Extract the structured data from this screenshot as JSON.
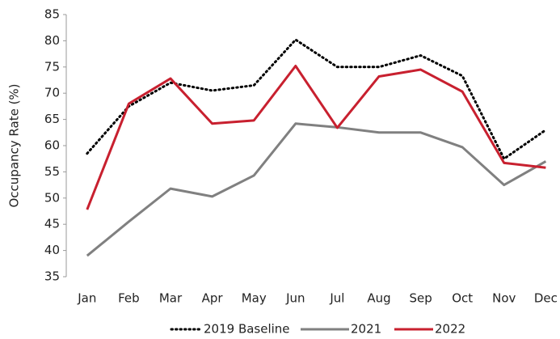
{
  "chart_data": {
    "type": "line",
    "y_label": "Occupancy Rate (%)",
    "categories": [
      "Jan",
      "Feb",
      "Mar",
      "Apr",
      "May",
      "Jun",
      "Jul",
      "Aug",
      "Sep",
      "Oct",
      "Nov",
      "Dec"
    ],
    "series": [
      {
        "name": "2019 Baseline",
        "color": "#000000",
        "dash": "dotted",
        "values": [
          58.5,
          67.5,
          72,
          70.5,
          71.5,
          80.2,
          75,
          75,
          77.2,
          73.3,
          57.5,
          63
        ]
      },
      {
        "name": "2021",
        "color": "#808080",
        "values": [
          39,
          45.5,
          51.8,
          50.3,
          54.3,
          64.2,
          63.5,
          62.5,
          62.5,
          59.7,
          52.5,
          57
        ]
      },
      {
        "name": "2022",
        "color": "#c8202f",
        "values": [
          47.8,
          68,
          72.8,
          64.2,
          64.8,
          75.2,
          63.4,
          73.2,
          74.5,
          70.3,
          56.7,
          55.8
        ]
      }
    ],
    "ylim": [
      35,
      85
    ],
    "yticks": [
      35,
      40,
      45,
      50,
      55,
      60,
      65,
      70,
      75,
      80,
      85
    ],
    "grid": false,
    "legend": "bottom"
  }
}
